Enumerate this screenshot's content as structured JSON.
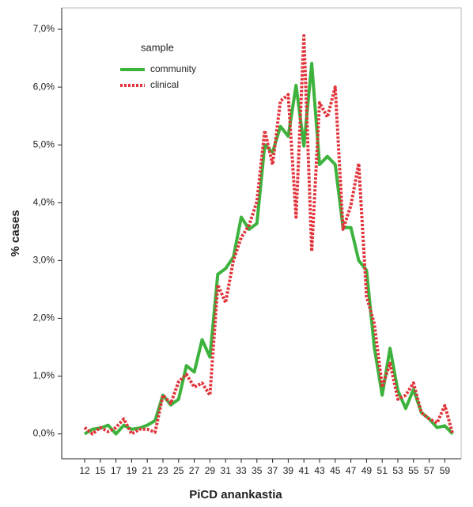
{
  "chart_data": {
    "type": "line",
    "x_label": "PiCD anankastia",
    "y_label": "% cases",
    "legend_title": "sample",
    "legend": "top-left",
    "categories": [
      "12",
      null,
      "15",
      null,
      "17",
      null,
      "19",
      null,
      "21",
      null,
      "23",
      null,
      "25",
      null,
      "27",
      null,
      "29",
      null,
      "31",
      null,
      "33",
      null,
      "35",
      null,
      "37",
      null,
      "39",
      null,
      "41",
      null,
      "43",
      null,
      "45",
      null,
      "47",
      null,
      "49",
      null,
      "51",
      null,
      "53",
      null,
      "55",
      null,
      "57",
      null,
      "59",
      null
    ],
    "series": [
      {
        "name": "community",
        "color": "#3db33d",
        "style": "solid",
        "values": [
          0.0,
          0.08,
          0.1,
          0.15,
          0.0,
          0.15,
          0.08,
          0.1,
          0.15,
          0.23,
          0.67,
          0.5,
          0.6,
          1.18,
          1.07,
          1.63,
          1.33,
          2.76,
          2.86,
          3.06,
          3.75,
          3.54,
          3.64,
          5.0,
          4.87,
          5.32,
          5.15,
          6.03,
          4.98,
          6.41,
          4.66,
          4.8,
          4.66,
          3.57,
          3.57,
          3.0,
          2.83,
          1.49,
          0.67,
          1.48,
          0.75,
          0.44,
          0.77,
          0.37,
          0.26,
          0.11,
          0.14,
          0.0
        ]
      },
      {
        "name": "clinical",
        "color": "#e0333a",
        "style": "dotted",
        "values": [
          0.11,
          0.0,
          0.11,
          0.04,
          0.11,
          0.26,
          0.0,
          0.08,
          0.08,
          0.03,
          0.67,
          0.53,
          0.9,
          1.03,
          0.81,
          0.88,
          0.67,
          2.58,
          2.27,
          3.0,
          3.4,
          3.61,
          4.02,
          5.25,
          4.66,
          5.76,
          5.87,
          3.75,
          6.89,
          3.16,
          5.73,
          5.48,
          6.0,
          3.54,
          3.95,
          4.68,
          2.38,
          1.9,
          0.81,
          1.22,
          0.6,
          0.67,
          0.88,
          0.37,
          0.26,
          0.19,
          0.49,
          0.0
        ]
      }
    ],
    "ylim": [
      -0.43,
      7.37
    ],
    "yticks": [
      {
        "value": 0,
        "label": "0,0%"
      },
      {
        "value": 1,
        "label": "1,0%"
      },
      {
        "value": 2,
        "label": "2,0%"
      },
      {
        "value": 3,
        "label": "3,0%"
      },
      {
        "value": 4,
        "label": "4,0%"
      },
      {
        "value": 5,
        "label": "5,0%"
      },
      {
        "value": 6,
        "label": "6,0%"
      },
      {
        "value": 7,
        "label": "7,0%"
      }
    ]
  }
}
